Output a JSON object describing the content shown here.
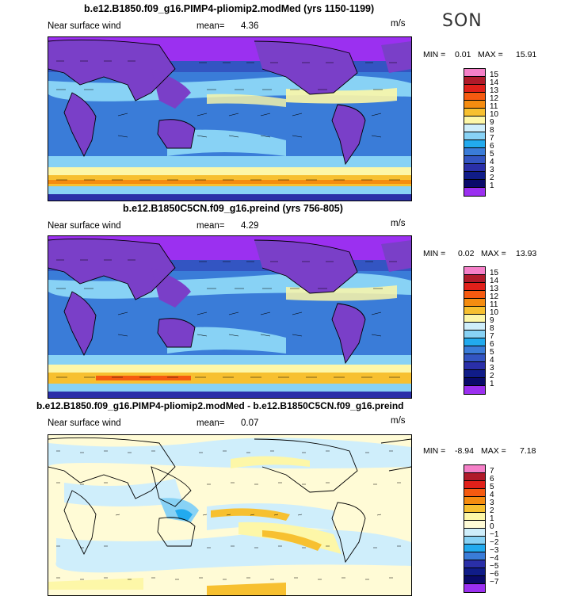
{
  "season": "SON",
  "variable_label": "Near surface wind",
  "units": "m/s",
  "mean_label": "mean=",
  "panels": [
    {
      "title": "b.e12.B1850.f09_g16.PIMP4-pliomip2.modMed (yrs 1150-1199)",
      "mean": "4.36",
      "min_label": "MIN =",
      "min": "0.01",
      "max_label": "MAX =",
      "max": "15.91",
      "levels": [
        "15",
        "14",
        "13",
        "12",
        "11",
        "10",
        "9",
        "8",
        "7",
        "6",
        "5",
        "4",
        "3",
        "2",
        "1"
      ],
      "colors": [
        "#f580c8",
        "#b01a2a",
        "#e0201a",
        "#f55a10",
        "#f58c10",
        "#f7c030",
        "#fdf7a8",
        "#cfeefb",
        "#88d2f5",
        "#22aaee",
        "#3a7cd8",
        "#3355c2",
        "#2a2fa8",
        "#101c88",
        "#0a0a6a",
        "#9b30f0"
      ]
    },
    {
      "title": "b.e12.B1850C5CN.f09_g16.preind (yrs 756-805)",
      "mean": "4.29",
      "min_label": "MIN =",
      "min": "0.02",
      "max_label": "MAX =",
      "max": "13.93",
      "levels": [
        "15",
        "14",
        "13",
        "12",
        "11",
        "10",
        "9",
        "8",
        "7",
        "6",
        "5",
        "4",
        "3",
        "2",
        "1"
      ],
      "colors": [
        "#f580c8",
        "#b01a2a",
        "#e0201a",
        "#f55a10",
        "#f58c10",
        "#f7c030",
        "#fdf7a8",
        "#cfeefb",
        "#88d2f5",
        "#22aaee",
        "#3a7cd8",
        "#3355c2",
        "#2a2fa8",
        "#101c88",
        "#0a0a6a",
        "#9b30f0"
      ]
    },
    {
      "title": "b.e12.B1850.f09_g16.PIMP4-pliomip2.modMed - b.e12.B1850C5CN.f09_g16.preind",
      "mean": "0.07",
      "min_label": "MIN =",
      "min": "-8.94",
      "max_label": "MAX =",
      "max": "7.18",
      "levels": [
        "7",
        "6",
        "5",
        "4",
        "3",
        "2",
        "1",
        "0",
        "−1",
        "−2",
        "−3",
        "−4",
        "−5",
        "−6",
        "−7"
      ],
      "colors": [
        "#f580c8",
        "#b01a2a",
        "#e0201a",
        "#f55a10",
        "#f58c10",
        "#f7c030",
        "#fdf7a8",
        "#fffbd6",
        "#cfeefb",
        "#88d2f5",
        "#22aaee",
        "#3a7cd8",
        "#2a2fa8",
        "#101c88",
        "#0a0a6a",
        "#9b30f0"
      ]
    }
  ]
}
